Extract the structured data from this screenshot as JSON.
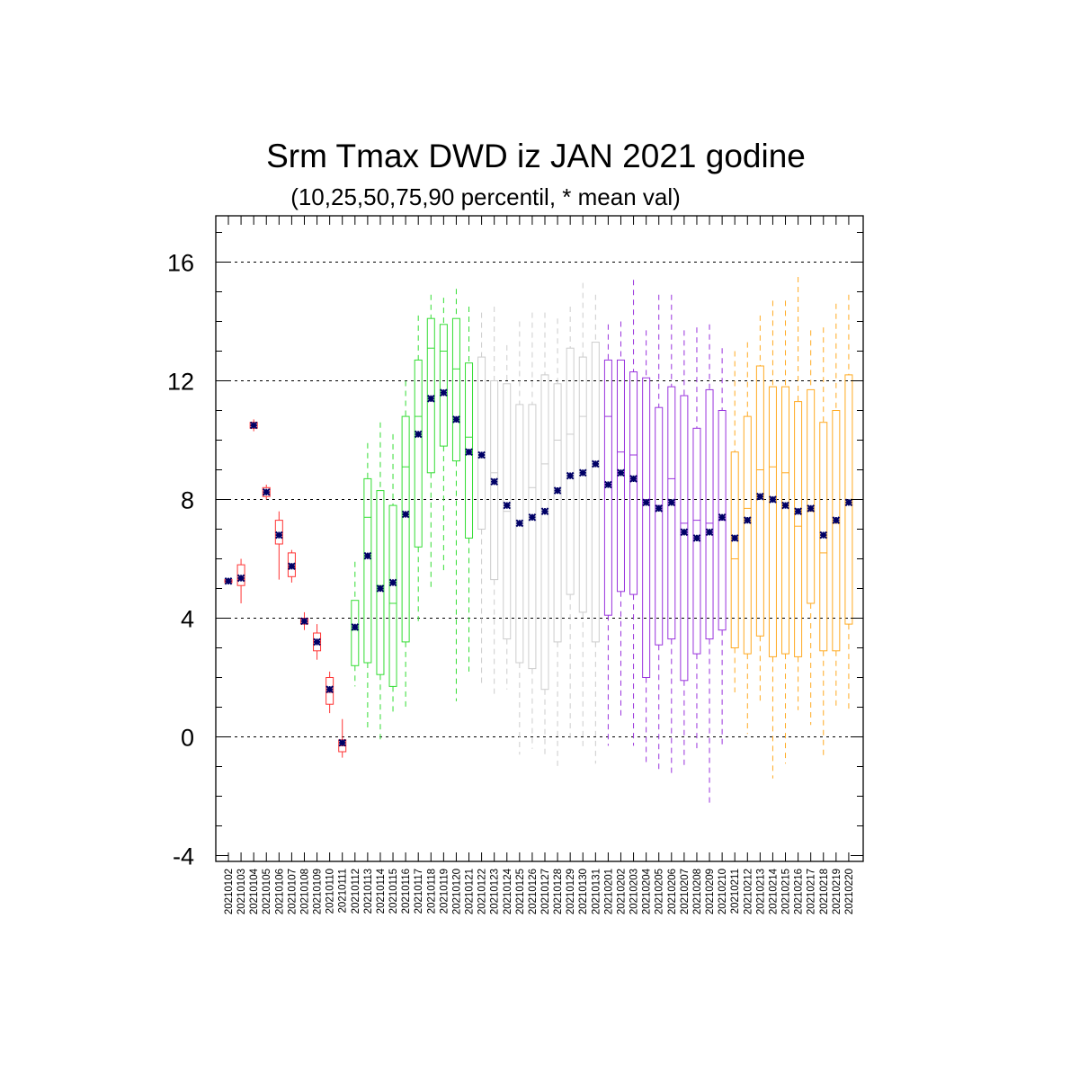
{
  "chart_data": {
    "type": "boxplot",
    "title": "Srm Tmax DWD iz JAN 2021 godine",
    "subtitle": "(10,25,50,75,90 percentil, * mean val)",
    "xlabel": "",
    "ylabel": "",
    "ylim": [
      -4,
      17.5
    ],
    "yticks": [
      -4,
      0,
      4,
      8,
      12,
      16
    ],
    "grid_y_dashed": [
      0,
      4,
      8,
      12,
      16
    ],
    "mean_marker_color": "#000066",
    "categories": [
      "20210102",
      "20210103",
      "20210104",
      "20210105",
      "20210106",
      "20210107",
      "20210108",
      "20210109",
      "20210110",
      "20210111",
      "20210112",
      "20210113",
      "20210114",
      "20210115",
      "20210116",
      "20210117",
      "20210118",
      "20210119",
      "20210120",
      "20210121",
      "20210122",
      "20210123",
      "20210124",
      "20210125",
      "20210126",
      "20210127",
      "20210128",
      "20210129",
      "20210130",
      "20210131",
      "20210201",
      "20210202",
      "20210203",
      "20210204",
      "20210205",
      "20210206",
      "20210207",
      "20210208",
      "20210209",
      "20210210",
      "20210211",
      "20210212",
      "20210213",
      "20210214",
      "20210215",
      "20210216",
      "20210217",
      "20210218",
      "20210219",
      "20210220"
    ],
    "groups": [
      {
        "color": "#ff3333",
        "from": 0,
        "to": 9
      },
      {
        "color": "#33dd33",
        "from": 10,
        "to": 19
      },
      {
        "color": "#cccccc",
        "from": 20,
        "to": 29
      },
      {
        "color": "#9933dd",
        "from": 30,
        "to": 39
      },
      {
        "color": "#ffaa22",
        "from": 40,
        "to": 49
      }
    ],
    "p10": [
      5.2,
      4.5,
      10.3,
      8.0,
      5.3,
      5.2,
      3.6,
      2.6,
      0.8,
      -0.7,
      1.7,
      0.2,
      -0.1,
      0.8,
      1.0,
      3.9,
      5.0,
      5.6,
      1.2,
      2.2,
      1.8,
      1.4,
      1.6,
      -0.6,
      -0.4,
      -0.6,
      -1.1,
      -0.1,
      -0.4,
      -0.9,
      -0.3,
      0.6,
      -0.3,
      -0.9,
      -1.2,
      -1.3,
      -1.0,
      -0.4,
      -2.3,
      -0.3,
      1.5,
      0.1,
      1.2,
      -1.4,
      -0.9,
      0.9,
      0.4,
      -0.7,
      1.0,
      0.8
    ],
    "p25": [
      5.2,
      5.1,
      10.4,
      8.1,
      6.5,
      5.4,
      3.8,
      2.9,
      1.1,
      -0.5,
      2.4,
      2.5,
      2.1,
      1.7,
      3.2,
      6.4,
      8.9,
      9.8,
      9.3,
      6.7,
      7.0,
      5.3,
      3.3,
      2.5,
      2.3,
      1.6,
      3.2,
      4.8,
      4.2,
      3.2,
      4.1,
      4.9,
      4.8,
      2.0,
      3.1,
      3.3,
      1.9,
      2.8,
      3.3,
      3.6,
      3.0,
      2.8,
      3.4,
      2.7,
      2.8,
      2.7,
      4.5,
      2.9,
      2.9,
      3.8
    ],
    "p50": [
      5.2,
      5.3,
      10.5,
      8.2,
      6.8,
      5.7,
      3.9,
      3.2,
      1.5,
      -0.3,
      3.6,
      7.4,
      5.1,
      4.5,
      9.1,
      10.8,
      13.1,
      13.0,
      12.4,
      10.1,
      9.4,
      8.9,
      7.6,
      7.2,
      8.4,
      9.2,
      10.0,
      10.2,
      10.8,
      9.1,
      10.8,
      9.6,
      9.5,
      8.0,
      7.8,
      8.7,
      7.2,
      7.3,
      7.2,
      7.3,
      6.0,
      7.7,
      9.0,
      9.1,
      8.9,
      7.1,
      7.6,
      6.2,
      7.2,
      7.9
    ],
    "p75": [
      5.3,
      5.8,
      10.6,
      8.4,
      7.3,
      6.2,
      4.0,
      3.5,
      2.0,
      -0.1,
      4.6,
      8.7,
      8.3,
      7.8,
      10.8,
      12.7,
      14.1,
      13.9,
      14.1,
      12.6,
      12.8,
      12.0,
      11.9,
      11.2,
      11.2,
      12.2,
      11.9,
      13.1,
      12.8,
      13.3,
      12.7,
      12.7,
      12.3,
      12.1,
      11.1,
      11.8,
      11.5,
      10.4,
      11.7,
      11.0,
      9.6,
      10.8,
      12.5,
      11.8,
      11.8,
      11.3,
      11.7,
      10.6,
      11.0,
      12.2
    ],
    "p90": [
      5.3,
      6.0,
      10.7,
      8.5,
      7.6,
      6.3,
      4.2,
      3.8,
      2.2,
      0.6,
      5.9,
      9.9,
      10.6,
      10.2,
      12.0,
      14.2,
      14.9,
      14.8,
      15.1,
      14.5,
      14.3,
      14.5,
      13.2,
      14.0,
      14.3,
      14.3,
      14.1,
      14.5,
      15.3,
      14.9,
      13.9,
      14.0,
      15.4,
      13.7,
      14.9,
      14.9,
      13.7,
      13.8,
      13.9,
      13.1,
      13.0,
      13.3,
      14.2,
      14.7,
      14.7,
      15.5,
      13.7,
      13.8,
      14.6,
      14.9
    ],
    "mean": [
      5.25,
      5.35,
      10.5,
      8.25,
      6.8,
      5.75,
      3.9,
      3.2,
      1.6,
      -0.2,
      3.7,
      6.1,
      5.0,
      5.2,
      7.5,
      10.2,
      11.4,
      11.6,
      10.7,
      9.6,
      9.5,
      8.6,
      7.8,
      7.2,
      7.4,
      7.6,
      8.3,
      8.8,
      8.9,
      9.2,
      8.5,
      8.9,
      8.7,
      7.9,
      7.7,
      7.9,
      6.9,
      6.7,
      6.9,
      7.4,
      6.7,
      7.3,
      8.1,
      8.0,
      7.8,
      7.6,
      7.7,
      6.8,
      7.3,
      7.9
    ]
  }
}
